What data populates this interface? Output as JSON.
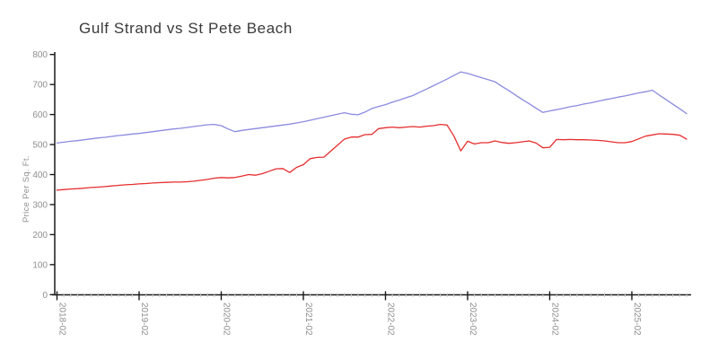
{
  "window": {
    "background": "#ffffff"
  },
  "chart_data": {
    "type": "line",
    "title": "Gulf Strand vs St Pete Beach",
    "xlabel": "",
    "ylabel": "Price Per Sq. Ft.",
    "ylim": [
      0,
      800
    ],
    "ytick_step": 100,
    "grid": false,
    "legend_position": "none",
    "major_month": "02",
    "major_tick_labels": [
      "2018-02",
      "2019-02",
      "2020-02",
      "2021-02",
      "2022-02",
      "2023-02",
      "2024-02",
      "2025-02"
    ],
    "colors": {
      "axis": "#1a1a1a",
      "tick_label": "#8f8f8f",
      "minor_tick": "#c9c9c9",
      "title": "#3a3a3a"
    },
    "x": [
      "2018-02",
      "2018-03",
      "2018-04",
      "2018-05",
      "2018-06",
      "2018-07",
      "2018-08",
      "2018-09",
      "2018-10",
      "2018-11",
      "2018-12",
      "2019-01",
      "2019-02",
      "2019-03",
      "2019-04",
      "2019-05",
      "2019-06",
      "2019-07",
      "2019-08",
      "2019-09",
      "2019-10",
      "2019-11",
      "2019-12",
      "2020-01",
      "2020-02",
      "2020-03",
      "2020-04",
      "2020-05",
      "2020-06",
      "2020-07",
      "2020-08",
      "2020-09",
      "2020-10",
      "2020-11",
      "2020-12",
      "2021-01",
      "2021-02",
      "2021-03",
      "2021-04",
      "2021-05",
      "2021-06",
      "2021-07",
      "2021-08",
      "2021-09",
      "2021-10",
      "2021-11",
      "2021-12",
      "2022-01",
      "2022-02",
      "2022-03",
      "2022-04",
      "2022-05",
      "2022-06",
      "2022-07",
      "2022-08",
      "2022-09",
      "2022-10",
      "2022-11",
      "2022-12",
      "2023-01",
      "2023-02",
      "2023-03",
      "2023-04",
      "2023-05",
      "2023-06",
      "2023-07",
      "2023-08",
      "2023-09",
      "2023-10",
      "2023-11",
      "2023-12",
      "2024-01",
      "2024-02",
      "2024-03",
      "2024-04",
      "2024-05",
      "2024-06",
      "2024-07",
      "2024-08",
      "2024-09",
      "2024-10",
      "2024-11",
      "2024-12",
      "2025-01",
      "2025-02",
      "2025-03",
      "2025-04",
      "2025-05",
      "2025-06",
      "2025-07",
      "2025-08",
      "2025-09",
      "2025-10"
    ],
    "series": [
      {
        "name": "Gulf Strand",
        "color": "#8b8be0",
        "values": [
          505,
          508,
          511,
          513,
          516,
          519,
          522,
          524,
          527,
          530,
          532,
          535,
          537,
          540,
          543,
          546,
          549,
          552,
          554,
          557,
          560,
          563,
          566,
          567,
          563,
          552,
          543,
          547,
          550,
          553,
          556,
          559,
          562,
          565,
          568,
          572,
          576,
          581,
          586,
          591,
          596,
          601,
          606,
          601,
          599,
          608,
          620,
          627,
          633,
          641,
          648,
          656,
          663,
          674,
          685,
          696,
          707,
          718,
          730,
          742,
          737,
          730,
          723,
          716,
          709,
          694,
          680,
          665,
          650,
          636,
          621,
          607,
          612,
          616,
          621,
          626,
          630,
          635,
          639,
          644,
          649,
          653,
          658,
          662,
          667,
          672,
          676,
          681,
          665,
          650,
          634,
          619,
          603
        ]
      },
      {
        "name": "St Pete Beach",
        "color": "#e62e2e",
        "values": [
          348,
          350,
          352,
          353,
          355,
          357,
          358,
          360,
          362,
          364,
          366,
          367,
          369,
          370,
          372,
          373,
          374,
          375,
          375,
          376,
          378,
          381,
          384,
          388,
          390,
          389,
          390,
          395,
          400,
          398,
          403,
          411,
          419,
          420,
          407,
          424,
          433,
          453,
          457,
          458,
          478,
          498,
          518,
          525,
          525,
          533,
          534,
          553,
          556,
          558,
          556,
          558,
          560,
          558,
          561,
          563,
          567,
          565,
          528,
          479,
          511,
          502,
          506,
          506,
          512,
          507,
          504,
          506,
          509,
          512,
          505,
          489,
          491,
          517,
          516,
          517,
          516,
          516,
          515,
          514,
          512,
          509,
          506,
          506,
          510,
          519,
          528,
          532,
          536,
          535,
          534,
          531,
          518
        ]
      }
    ]
  }
}
